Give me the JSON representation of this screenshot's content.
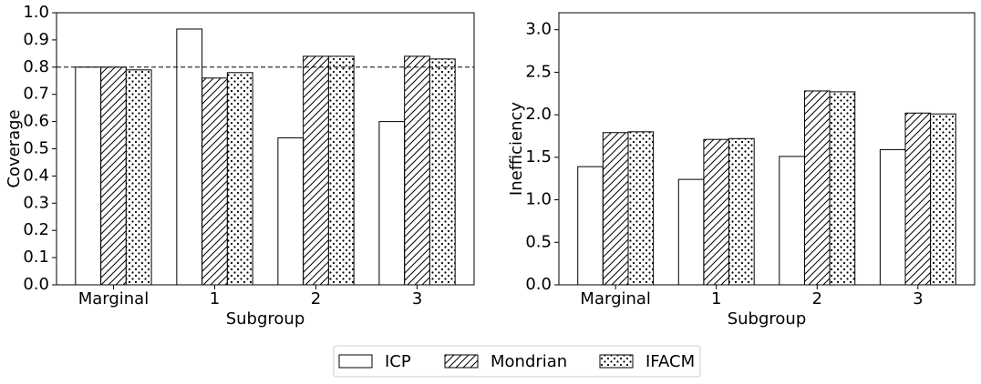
{
  "chart_data": [
    {
      "type": "bar",
      "xlabel": "Subgroup",
      "ylabel": "Coverage",
      "categories": [
        "Marginal",
        "1",
        "2",
        "3"
      ],
      "series": [
        {
          "name": "ICP",
          "color": "#ffffff",
          "hatch": "none",
          "values": [
            0.8,
            0.94,
            0.54,
            0.6
          ]
        },
        {
          "name": "Mondrian",
          "color": "#ffffff",
          "hatch": "//",
          "values": [
            0.8,
            0.76,
            0.84,
            0.84
          ]
        },
        {
          "name": "IFACM",
          "color": "#ffffff",
          "hatch": "..",
          "values": [
            0.79,
            0.78,
            0.84,
            0.83
          ]
        }
      ],
      "hline": 0.8,
      "ylim": [
        0,
        1
      ],
      "yticks": [
        {
          "value": 0,
          "label": "0.0"
        },
        0.1,
        0.2,
        0.3,
        0.4,
        0.5,
        0.6,
        0.7,
        0.8,
        0.9,
        {
          "value": 1,
          "label": "1.0"
        }
      ]
    },
    {
      "type": "bar",
      "xlabel": "Subgroup",
      "ylabel": "Inefficiency",
      "categories": [
        "Marginal",
        "1",
        "2",
        "3"
      ],
      "series": [
        {
          "name": "ICP",
          "color": "#ffffff",
          "hatch": "none",
          "values": [
            1.39,
            1.24,
            1.51,
            1.59
          ]
        },
        {
          "name": "Mondrian",
          "color": "#ffffff",
          "hatch": "//",
          "values": [
            1.79,
            1.71,
            2.28,
            2.02
          ]
        },
        {
          "name": "IFACM",
          "color": "#ffffff",
          "hatch": "..",
          "values": [
            1.8,
            1.72,
            2.27,
            2.01
          ]
        }
      ],
      "ylim": [
        0,
        3.2
      ],
      "yticks": [
        {
          "value": 0,
          "label": "0.0"
        },
        0.5,
        {
          "value": 1,
          "label": "1.0"
        },
        1.5,
        {
          "value": 2,
          "label": "2.0"
        },
        2.5,
        {
          "value": 3,
          "label": "3.0"
        }
      ]
    }
  ]
}
